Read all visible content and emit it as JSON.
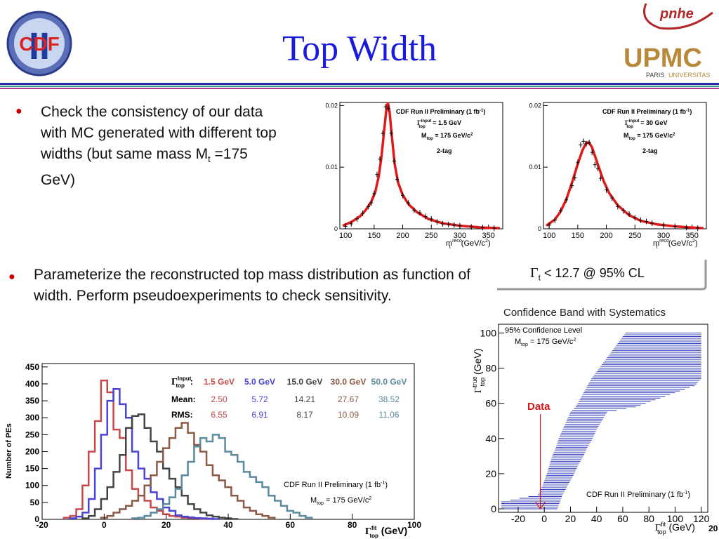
{
  "slide": {
    "title": "Top Width",
    "bullet1_text": "Check the consistency of our data with MC generated with different top widths (but same mass M",
    "bullet1_sub": "t",
    "bullet1_tail": " =175 GeV)",
    "bullet2_text": "Parameterize the reconstructed top mass distribution as function of width. Perform pseudoexperiments to check sensitivity.",
    "limit_symbol": "Γ",
    "limit_sub": "t",
    "limit_text": " < 12.7 @ 95% CL",
    "page_number": "20",
    "logos": {
      "left": "CDF",
      "left_roman": "II",
      "right_top": "pnhe",
      "right_main": "UPMC",
      "right_sub1": "PARIS",
      "right_sub2": "UNIVERSITAS"
    },
    "colors": {
      "title": "#1a1adb",
      "rule_blue": "#2b2bb0",
      "rule_teal": "#2e9b8f",
      "rule_pink": "#b7368e"
    }
  },
  "chart_data": [
    {
      "type": "line",
      "panel": "mass-fit-1.5",
      "xlabel": "m",
      "xlabel_sup": "reco",
      "xlabel_sub": "t",
      "xlabel_unit": " (GeV/c",
      "xlabel_unit_sup": "2",
      "xlabel_close": ")",
      "xlim": [
        90,
        375
      ],
      "ylim": [
        0,
        0.0205
      ],
      "x_ticks": [
        100,
        150,
        200,
        250,
        300,
        350
      ],
      "y_ticks": [
        0,
        0.01,
        0.02
      ],
      "y_tick_labels": [
        "0",
        "0.01",
        "0.02"
      ],
      "legend_title": "CDF Run II Preliminary (1 fb",
      "legend_title_sup": "-1",
      "legend_title_close": ")",
      "legend_gamma": "Γ",
      "legend_gamma_sup": "input",
      "legend_gamma_sub": "top",
      "legend_gamma_value": " = 1.5 GeV",
      "legend_mass": "M",
      "legend_mass_sub": "top",
      "legend_mass_value": " = 175 GeV/c",
      "legend_mass_sup": "2",
      "legend_tag": "2-tag",
      "curve": {
        "x": [
          95,
          110,
          125,
          135,
          145,
          152,
          158,
          163,
          167,
          171,
          174,
          177,
          181,
          186,
          192,
          200,
          210,
          225,
          245,
          270,
          300,
          340,
          370
        ],
        "y": [
          0.0005,
          0.0011,
          0.002,
          0.003,
          0.0044,
          0.006,
          0.0085,
          0.0118,
          0.0155,
          0.019,
          0.0205,
          0.019,
          0.015,
          0.0105,
          0.0075,
          0.0055,
          0.004,
          0.0027,
          0.0016,
          0.0009,
          0.0005,
          0.0002,
          0.0001
        ]
      },
      "points": {
        "x": [
          100,
          110,
          120,
          130,
          140,
          145,
          150,
          155,
          160,
          165,
          170,
          175,
          180,
          185,
          190,
          200,
          210,
          220,
          230,
          240,
          250,
          260,
          270,
          280,
          290,
          300,
          320,
          340,
          360
        ],
        "y": [
          0.0004,
          0.0008,
          0.0016,
          0.0025,
          0.0036,
          0.0042,
          0.0057,
          0.0088,
          0.0113,
          0.0155,
          0.0198,
          0.0195,
          0.0155,
          0.011,
          0.008,
          0.0054,
          0.0042,
          0.003,
          0.0026,
          0.002,
          0.0016,
          0.0011,
          0.0008,
          0.0007,
          0.0006,
          0.0005,
          0.0003,
          0.0002,
          0.0001
        ]
      }
    },
    {
      "type": "line",
      "panel": "mass-fit-30",
      "xlabel": "m",
      "xlabel_sup": "reco",
      "xlabel_sub": "t",
      "xlabel_unit": " (GeV/c",
      "xlabel_unit_sup": "2",
      "xlabel_close": ")",
      "xlim": [
        90,
        375
      ],
      "ylim": [
        0,
        0.0205
      ],
      "x_ticks": [
        100,
        150,
        200,
        250,
        300,
        350
      ],
      "y_ticks": [
        0,
        0.01,
        0.02
      ],
      "y_tick_labels": [
        "0",
        "0.01",
        "0.02"
      ],
      "legend_title": "CDF Run II Preliminary (1 fb",
      "legend_title_sup": "-1",
      "legend_title_close": ")",
      "legend_gamma": "Γ",
      "legend_gamma_sup": "input",
      "legend_gamma_sub": "top",
      "legend_gamma_value": " = 30 GeV",
      "legend_mass": "M",
      "legend_mass_sub": "top",
      "legend_mass_value": " = 175 GeV/c",
      "legend_mass_sup": "2",
      "legend_tag": "2-tag",
      "curve": {
        "x": [
          95,
          110,
          120,
          130,
          140,
          150,
          158,
          165,
          170,
          175,
          185,
          195,
          205,
          220,
          240,
          260,
          290,
          320,
          350,
          370
        ],
        "y": [
          0.0005,
          0.0015,
          0.0028,
          0.0048,
          0.0075,
          0.0105,
          0.0127,
          0.014,
          0.014,
          0.0132,
          0.0105,
          0.0078,
          0.0058,
          0.0038,
          0.0022,
          0.0013,
          0.0007,
          0.0004,
          0.0002,
          0.0001
        ]
      },
      "points": {
        "x": [
          100,
          110,
          120,
          130,
          140,
          145,
          150,
          155,
          160,
          165,
          170,
          175,
          180,
          185,
          190,
          200,
          210,
          220,
          230,
          240,
          250,
          260,
          270,
          280,
          300,
          320,
          340,
          360
        ],
        "y": [
          0.0006,
          0.0014,
          0.003,
          0.0047,
          0.007,
          0.0083,
          0.0108,
          0.0136,
          0.0142,
          0.0138,
          0.014,
          0.0124,
          0.0104,
          0.0098,
          0.0082,
          0.0063,
          0.005,
          0.0036,
          0.0029,
          0.0024,
          0.0018,
          0.0014,
          0.0012,
          0.0009,
          0.0006,
          0.0004,
          0.0002,
          0.0001
        ]
      }
    },
    {
      "type": "line",
      "panel": "confidence-band",
      "title": "Confidence Band with Systematics",
      "xlabel": "Γ",
      "xlabel_sup": "fit",
      "xlabel_sub": "top",
      "xlabel_unit": " (GeV)",
      "ylabel": "Γ",
      "ylabel_sup": "true",
      "ylabel_sub": "top",
      "ylabel_unit": " (GeV)",
      "xlim": [
        -35,
        125
      ],
      "ylim": [
        -2,
        105
      ],
      "x_ticks": [
        -20,
        0,
        20,
        40,
        60,
        80,
        100,
        120
      ],
      "y_ticks": [
        0,
        20,
        40,
        60,
        80,
        100
      ],
      "legend_cl": "95% Confidence Level",
      "legend_mass": "M",
      "legend_mass_sub": "top",
      "legend_mass_value": " = 175 GeV/c",
      "legend_mass_sup": "2",
      "annotation": "Data",
      "data_value": -3,
      "limit_value": 12.7,
      "footer": "CDF Run II Preliminary (1 fb",
      "footer_sup": "-1",
      "footer_close": ")",
      "band": [
        [
          0,
          -33,
          10
        ],
        [
          4,
          -33,
          12
        ],
        [
          8,
          -5,
          14
        ],
        [
          12,
          -2,
          17
        ],
        [
          16,
          0,
          20
        ],
        [
          20,
          2,
          23
        ],
        [
          25,
          4,
          26
        ],
        [
          30,
          6,
          30
        ],
        [
          35,
          9,
          33
        ],
        [
          40,
          11,
          37
        ],
        [
          45,
          14,
          40
        ],
        [
          50,
          17,
          44
        ],
        [
          55,
          20,
          48
        ],
        [
          58,
          24,
          70
        ],
        [
          62,
          27,
          85
        ],
        [
          66,
          30,
          100
        ],
        [
          70,
          33,
          115
        ],
        [
          74,
          36,
          120
        ],
        [
          78,
          40,
          120
        ],
        [
          82,
          44,
          120
        ],
        [
          86,
          48,
          120
        ],
        [
          90,
          52,
          120
        ],
        [
          94,
          56,
          120
        ],
        [
          98,
          60,
          120
        ],
        [
          100,
          62,
          120
        ]
      ],
      "band_color": "#3340b8"
    },
    {
      "type": "line",
      "panel": "pseudoexperiments",
      "xlabel": "Γ",
      "xlabel_sup": "fit",
      "xlabel_sub": "top",
      "xlabel_unit": " (GeV)",
      "ylabel": "Number of PEs",
      "xlim": [
        -20,
        100
      ],
      "ylim": [
        0,
        460
      ],
      "x_ticks": [
        -20,
        0,
        20,
        40,
        60,
        80,
        100
      ],
      "y_ticks": [
        0,
        50,
        100,
        150,
        200,
        250,
        300,
        350,
        400,
        450
      ],
      "legend_head_gamma": "Γ",
      "legend_head_sup": "Input",
      "legend_head_sub": "top",
      "legend_head_colon": ":",
      "row_labels": [
        "Mean:",
        "RMS:"
      ],
      "footer": "CDF Run II Preliminary (1 fb",
      "footer_sup": "-1",
      "footer_close": ")",
      "footer_mass": "M",
      "footer_mass_sub": "top",
      "footer_mass_value": " = 175 GeV/c",
      "footer_mass_sup": "2",
      "bin_width": 2,
      "series": [
        {
          "name": "1.5 GeV",
          "mean": "2.50",
          "rms": "6.55",
          "color": "#c9474a",
          "x": [
            -12,
            -10,
            -8,
            -6,
            -4,
            -2,
            0,
            2,
            4,
            6,
            8,
            10,
            12,
            14,
            16,
            18,
            20,
            22,
            24,
            26,
            28,
            30,
            32,
            34
          ],
          "values": [
            5,
            10,
            30,
            100,
            200,
            290,
            410,
            375,
            265,
            240,
            145,
            90,
            70,
            55,
            35,
            25,
            15,
            10,
            8,
            5,
            4,
            3,
            2,
            1
          ]
        },
        {
          "name": "5.0 GeV",
          "mean": "5.72",
          "rms": "6.91",
          "color": "#4a44d6",
          "x": [
            -10,
            -8,
            -6,
            -4,
            -2,
            0,
            2,
            4,
            6,
            8,
            10,
            12,
            14,
            16,
            18,
            20,
            22,
            24,
            26,
            28,
            30,
            32,
            34,
            36
          ],
          "values": [
            3,
            8,
            20,
            60,
            150,
            250,
            350,
            385,
            340,
            300,
            200,
            150,
            120,
            80,
            60,
            35,
            25,
            12,
            8,
            6,
            4,
            3,
            2,
            1
          ]
        },
        {
          "name": "15.0 GeV",
          "mean": "14.21",
          "rms": "8.17",
          "color": "#444444",
          "x": [
            -6,
            -4,
            -2,
            0,
            2,
            4,
            6,
            8,
            10,
            12,
            14,
            16,
            18,
            20,
            22,
            24,
            26,
            28,
            30,
            32,
            34,
            36,
            38,
            40,
            42
          ],
          "values": [
            3,
            10,
            30,
            60,
            95,
            140,
            190,
            270,
            305,
            310,
            270,
            230,
            200,
            150,
            120,
            95,
            70,
            45,
            30,
            20,
            12,
            8,
            5,
            3,
            1
          ]
        },
        {
          "name": "30.0 GeV",
          "mean": "27.67",
          "rms": "10.09",
          "color": "#8a5a44",
          "x": [
            0,
            2,
            4,
            6,
            8,
            10,
            12,
            14,
            16,
            18,
            20,
            22,
            24,
            26,
            28,
            30,
            32,
            34,
            36,
            38,
            40,
            42,
            44,
            46,
            48,
            50,
            52,
            54
          ],
          "values": [
            5,
            10,
            20,
            30,
            40,
            55,
            70,
            100,
            130,
            170,
            210,
            240,
            270,
            285,
            255,
            220,
            200,
            160,
            130,
            115,
            95,
            70,
            55,
            35,
            25,
            15,
            10,
            5
          ]
        },
        {
          "name": "50.0 GeV",
          "mean": "38.52",
          "rms": "11.06",
          "color": "#5a8a9e",
          "x": [
            10,
            12,
            14,
            16,
            18,
            20,
            22,
            24,
            26,
            28,
            30,
            32,
            34,
            36,
            38,
            40,
            42,
            44,
            46,
            48,
            50,
            52,
            54,
            56,
            58,
            60,
            62,
            64,
            66
          ],
          "values": [
            3,
            5,
            10,
            20,
            30,
            45,
            65,
            90,
            130,
            170,
            215,
            240,
            230,
            250,
            240,
            200,
            190,
            170,
            140,
            125,
            110,
            95,
            70,
            55,
            40,
            25,
            20,
            10,
            5
          ]
        }
      ]
    }
  ]
}
